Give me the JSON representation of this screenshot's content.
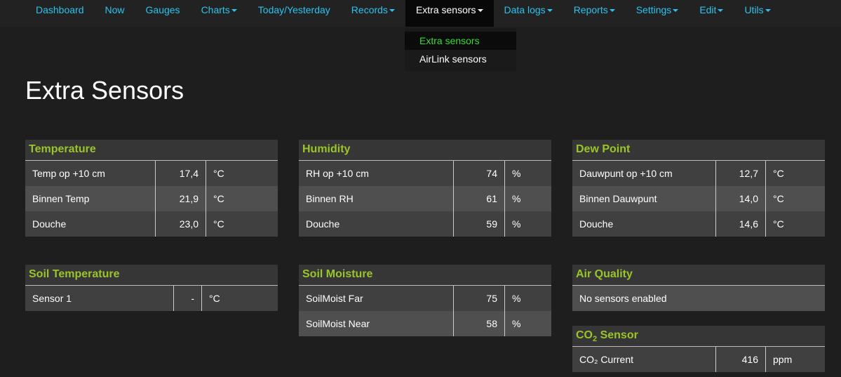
{
  "nav": [
    {
      "label": "Dashboard"
    },
    {
      "label": "Now"
    },
    {
      "label": "Gauges"
    },
    {
      "label": "Charts",
      "dropdown": true
    },
    {
      "label": "Today/Yesterday"
    },
    {
      "label": "Records",
      "dropdown": true
    },
    {
      "label": "Extra sensors",
      "dropdown": true,
      "active": true
    },
    {
      "label": "Data logs",
      "dropdown": true
    },
    {
      "label": "Reports",
      "dropdown": true
    },
    {
      "label": "Settings",
      "dropdown": true
    },
    {
      "label": "Edit",
      "dropdown": true
    },
    {
      "label": "Utils",
      "dropdown": true
    }
  ],
  "dropdown": [
    "Extra sensors",
    "AirLink sensors"
  ],
  "title": "Extra Sensors",
  "panels": {
    "temperature": {
      "title": "Temperature",
      "rows": [
        [
          "Temp op +10 cm",
          "17,4",
          "°C"
        ],
        [
          "Binnen Temp",
          "21,9",
          "°C"
        ],
        [
          "Douche",
          "23,0",
          "°C"
        ]
      ]
    },
    "humidity": {
      "title": "Humidity",
      "rows": [
        [
          "RH op +10 cm",
          "74",
          "%"
        ],
        [
          "Binnen RH",
          "61",
          "%"
        ],
        [
          "Douche",
          "59",
          "%"
        ]
      ]
    },
    "dewpoint": {
      "title": "Dew Point",
      "rows": [
        [
          "Dauwpunt op +10 cm",
          "12,7",
          "°C"
        ],
        [
          "Binnen Dauwpunt",
          "14,0",
          "°C"
        ],
        [
          "Douche",
          "14,6",
          "°C"
        ]
      ]
    },
    "soiltemp": {
      "title": "Soil Temperature",
      "rows": [
        [
          "Sensor 1",
          "-",
          "°C"
        ]
      ]
    },
    "soilmoist": {
      "title": "Soil Moisture",
      "rows": [
        [
          "SoilMoist Far",
          "75",
          "%"
        ],
        [
          "SoilMoist Near",
          "58",
          "%"
        ]
      ]
    },
    "airquality": {
      "title": "Air Quality",
      "message": "No sensors enabled"
    },
    "co2": {
      "title_prefix": "CO",
      "title_sub": "2",
      "title_suffix": " Sensor",
      "rows": [
        [
          "CO₂ Current",
          "416",
          "ppm"
        ]
      ]
    }
  },
  "colors": {
    "link": "#2bc3f0",
    "heading": "#9ac52a",
    "active_dropdown": "#33dd33"
  }
}
